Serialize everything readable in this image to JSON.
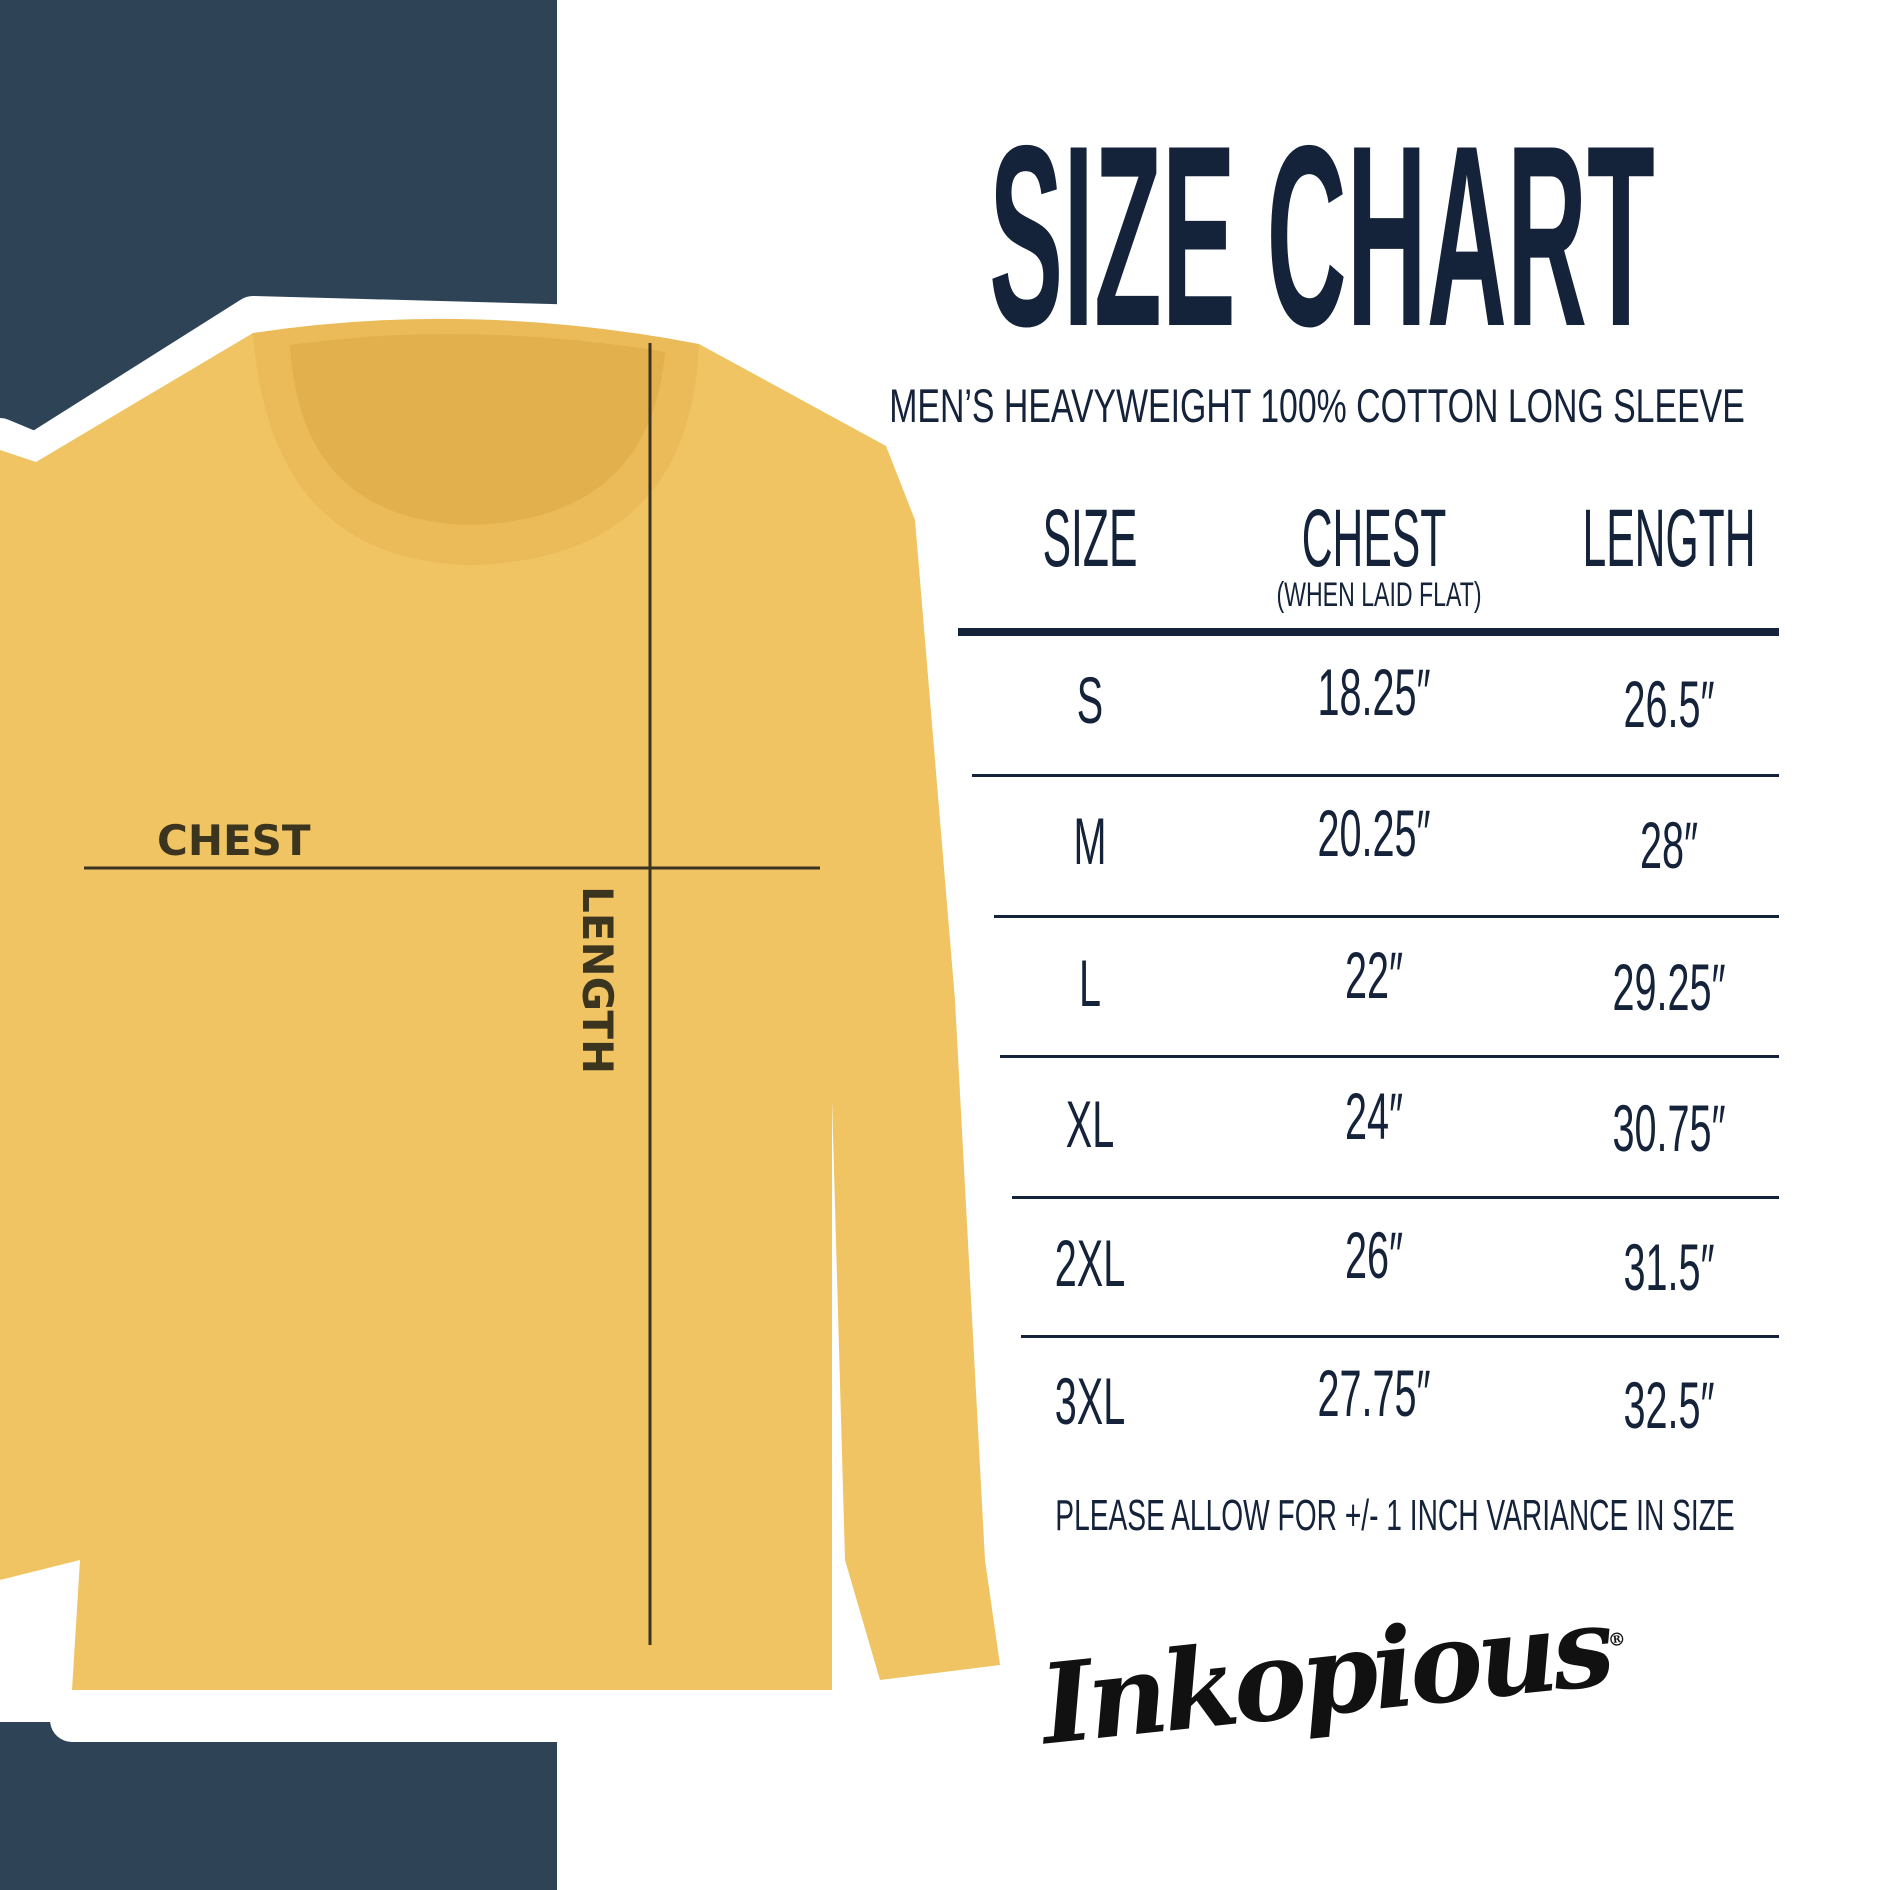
{
  "colors": {
    "panel": "#2e4356",
    "text": "#14233a",
    "shirt": "#f0c463",
    "measure_line": "#3b3520"
  },
  "title": "SIZE CHART",
  "subtitle": "MEN’S HEAVYWEIGHT 100% COTTON LONG SLEEVE",
  "shirt": {
    "chest_label": "CHEST",
    "length_label": "LENGTH"
  },
  "table": {
    "headers": [
      {
        "label": "SIZE"
      },
      {
        "label": "CHEST",
        "sub": "(WHEN LAID FLAT)"
      },
      {
        "label": "LENGTH"
      }
    ],
    "rows": [
      {
        "size": "S",
        "chest": "18.25″",
        "length": "26.5″"
      },
      {
        "size": "M",
        "chest": "20.25″",
        "length": "28″"
      },
      {
        "size": "L",
        "chest": "22″",
        "length": "29.25″"
      },
      {
        "size": "XL",
        "chest": "24″",
        "length": "30.75″"
      },
      {
        "size": "2XL",
        "chest": "26″",
        "length": "31.5″"
      },
      {
        "size": "3XL",
        "chest": "27.75″",
        "length": "32.5″"
      }
    ]
  },
  "footer_note": "PLEASE ALLOW FOR +/- 1 INCH VARIANCE IN SIZE",
  "logo": {
    "text": "Inkopious",
    "mark": "®"
  }
}
